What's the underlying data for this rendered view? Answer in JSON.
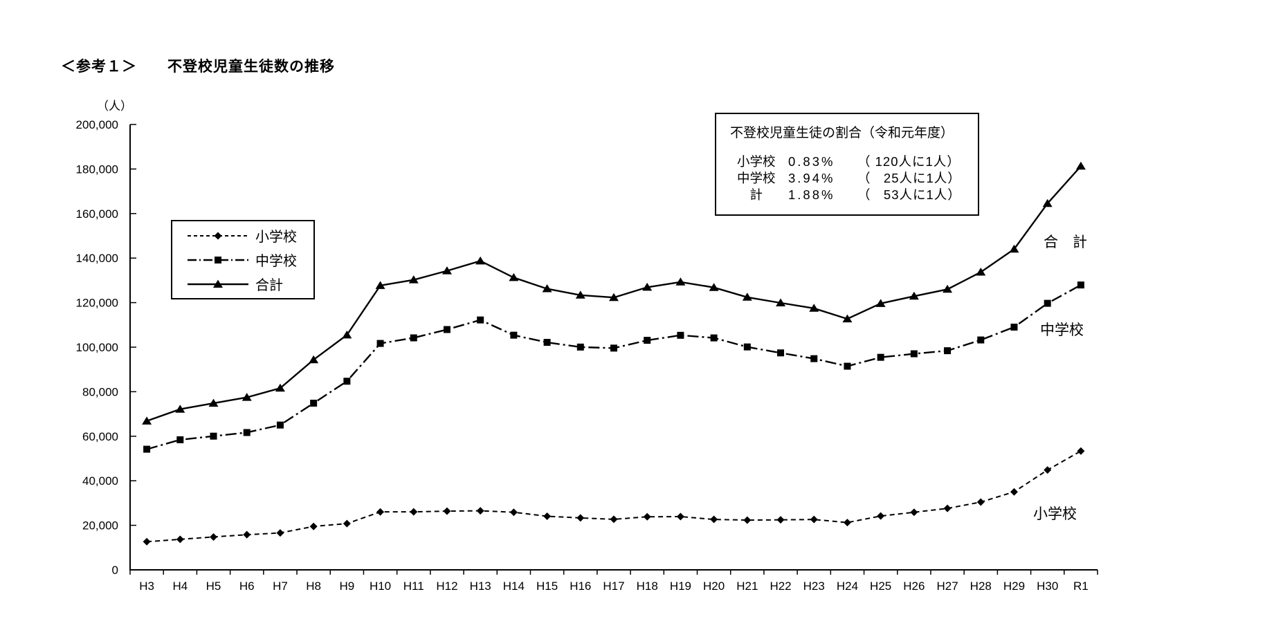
{
  "page": {
    "title": "＜参考１＞　　不登校児童生徒数の推移",
    "y_unit": "（人）"
  },
  "legend": {
    "items": [
      {
        "label": "小学校",
        "series_key": "elementary"
      },
      {
        "label": "中学校",
        "series_key": "junior_high"
      },
      {
        "label": "合計",
        "series_key": "total"
      }
    ]
  },
  "rate_box": {
    "title": "不登校児童生徒の割合（令和元年度）",
    "rows": [
      {
        "label": "小学校",
        "pct": "0.83%",
        "ratio": "（ 120人に1人）"
      },
      {
        "label": "中学校",
        "pct": "3.94%",
        "ratio": "（   25人に1人）"
      },
      {
        "label": "　計",
        "pct": "1.88%",
        "ratio": "（   53人に1人）"
      }
    ]
  },
  "series_notes": {
    "total": "合　計",
    "junior_high": "中学校",
    "elementary": "小学校"
  },
  "colors": {
    "ink": "#000000",
    "background": "#ffffff"
  },
  "chart_data": {
    "type": "line",
    "title": "不登校児童生徒数の推移",
    "ylabel": "（人）",
    "xlabel": "",
    "ylim": [
      0,
      200000
    ],
    "ytick_step": 20000,
    "grid": false,
    "legend_position": "upper-left-inside",
    "categories": [
      "H3",
      "H4",
      "H5",
      "H6",
      "H7",
      "H8",
      "H9",
      "H10",
      "H11",
      "H12",
      "H13",
      "H14",
      "H15",
      "H16",
      "H17",
      "H18",
      "H19",
      "H20",
      "H21",
      "H22",
      "H23",
      "H24",
      "H25",
      "H26",
      "H27",
      "H28",
      "H29",
      "H30",
      "R1"
    ],
    "series": [
      {
        "key": "elementary",
        "name": "小学校",
        "style": "dashed",
        "marker": "diamond",
        "values": [
          12645,
          13710,
          14769,
          15786,
          16569,
          19498,
          20765,
          26017,
          26047,
          26373,
          26511,
          25869,
          24077,
          23318,
          22709,
          23825,
          23927,
          22652,
          22327,
          22463,
          22622,
          21243,
          24175,
          25864,
          27583,
          30448,
          35032,
          44841,
          53350
        ]
      },
      {
        "key": "junior_high",
        "name": "中学校",
        "style": "dashdot",
        "marker": "square",
        "values": [
          54172,
          58421,
          60039,
          61663,
          65022,
          74853,
          84701,
          101675,
          104180,
          107913,
          112211,
          105383,
          102149,
          100040,
          99578,
          103069,
          105328,
          104153,
          100105,
          97428,
          94836,
          91446,
          95442,
          97033,
          98408,
          103235,
          108999,
          119687,
          127922
        ]
      },
      {
        "key": "total",
        "name": "合計",
        "style": "solid",
        "marker": "triangle",
        "values": [
          66817,
          72131,
          74808,
          77449,
          81591,
          94351,
          105466,
          127692,
          130227,
          134286,
          138722,
          131252,
          126226,
          123358,
          122287,
          126894,
          129255,
          126805,
          122432,
          119891,
          117458,
          112689,
          119617,
          122897,
          125991,
          133683,
          144031,
          164528,
          181272
        ]
      }
    ]
  }
}
